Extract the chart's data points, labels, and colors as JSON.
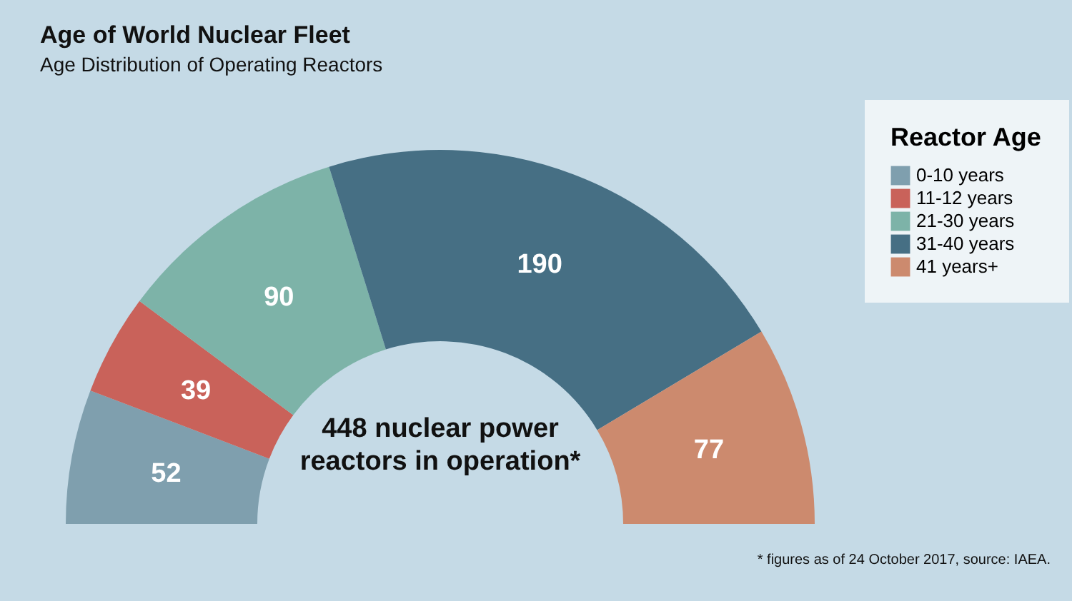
{
  "chart_data": {
    "type": "donut",
    "title": "Age of World Nuclear Fleet",
    "subtitle": "Age Distribution of Operating Reactors",
    "legend_title": "Reactor Age",
    "legend": "top right",
    "data_labels": true,
    "categories": [
      "0-10 years",
      "11-12 years",
      "21-30 years",
      "31-40 years",
      "41 years+"
    ],
    "values": [
      52,
      39,
      90,
      190,
      77
    ],
    "colors": [
      "#7f9fae",
      "#c9625a",
      "#7db3a8",
      "#466f84",
      "#cc8a6e"
    ],
    "annotations": [
      "448 nuclear power reactors in operation*",
      "* figures as of 24 October 2017, source:  IAEA."
    ]
  }
}
